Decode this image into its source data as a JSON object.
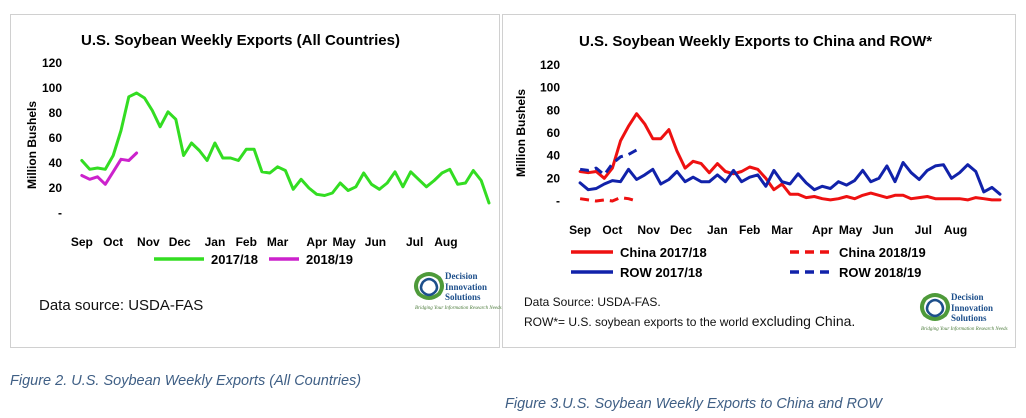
{
  "figures": [
    {
      "caption": "Figure 2. U.S. Soybean Weekly Exports (All Countries)",
      "source_text": "Data source: USDA-FAS",
      "logo": {
        "line1": "Decision",
        "line2": "Innovation",
        "line3": "Solutions",
        "tagline": "Bridging Your Information Research Needs",
        "icon": "knot-logo-icon",
        "colors": [
          "#4e9a3a",
          "#1d4f8b"
        ]
      }
    },
    {
      "caption": "Figure 3.U.S. Soybean Weekly Exports to China and ROW",
      "source_text": "Data Source: USDA-FAS.",
      "source_note_prefix": "ROW*= U.S. soybean exports to the world",
      "source_note_suffix": "excluding China.",
      "logo": {
        "line1": "Decision",
        "line2": "Innovation",
        "line3": "Solutions",
        "tagline": "Bridging Your Information Research Needs",
        "icon": "knot-logo-icon",
        "colors": [
          "#4e9a3a",
          "#1d4f8b"
        ]
      }
    }
  ],
  "chart_data": [
    {
      "type": "line",
      "title": "U.S. Soybean Weekly Exports (All Countries)",
      "ylabel": "Million Bushels",
      "xlabel": "",
      "ylim": [
        0,
        120
      ],
      "y_ticks": [
        "-",
        "20",
        "40",
        "60",
        "80",
        "100",
        "120"
      ],
      "x_ticks": [
        {
          "label": "Sep",
          "week": 1
        },
        {
          "label": "Oct",
          "week": 5
        },
        {
          "label": "Nov",
          "week": 9.5
        },
        {
          "label": "Dec",
          "week": 13.5
        },
        {
          "label": "Jan",
          "week": 18
        },
        {
          "label": "Feb",
          "week": 22
        },
        {
          "label": "Mar",
          "week": 26
        },
        {
          "label": "Apr",
          "week": 31
        },
        {
          "label": "May",
          "week": 34.5
        },
        {
          "label": "Jun",
          "week": 38.5
        },
        {
          "label": "Jul",
          "week": 43.5
        },
        {
          "label": "Aug",
          "week": 47.5
        }
      ],
      "x_range": [
        0,
        53
      ],
      "grid": false,
      "legend_position": "bottom",
      "series": [
        {
          "name": "2017/18",
          "color": "#33dd22",
          "dash": false,
          "values": [
            42,
            35,
            36,
            35,
            46,
            66,
            93,
            96,
            92,
            82,
            69,
            81,
            75,
            46,
            56,
            50,
            42,
            56,
            44,
            44,
            42,
            51,
            51,
            33,
            32,
            37,
            34,
            19,
            27,
            20,
            15,
            14,
            16,
            24,
            18,
            21,
            32,
            23,
            19,
            24,
            33,
            21,
            33,
            27,
            21,
            26,
            32,
            35,
            23,
            24,
            34,
            26,
            8
          ]
        },
        {
          "name": "2018/19",
          "color": "#cc22cc",
          "dash": false,
          "values": [
            30,
            27,
            29,
            23,
            33,
            43,
            42,
            48
          ]
        }
      ]
    },
    {
      "type": "line",
      "title": "U.S. Soybean Weekly Exports to China and ROW*",
      "ylabel": "Million Bushels",
      "xlabel": "",
      "ylim": [
        0,
        120
      ],
      "y_ticks": [
        "-",
        "20",
        "40",
        "60",
        "80",
        "100",
        "120"
      ],
      "x_ticks": [
        {
          "label": "Sep",
          "week": 1
        },
        {
          "label": "Oct",
          "week": 5
        },
        {
          "label": "Nov",
          "week": 9.5
        },
        {
          "label": "Dec",
          "week": 13.5
        },
        {
          "label": "Jan",
          "week": 18
        },
        {
          "label": "Feb",
          "week": 22
        },
        {
          "label": "Mar",
          "week": 26
        },
        {
          "label": "Apr",
          "week": 31
        },
        {
          "label": "May",
          "week": 34.5
        },
        {
          "label": "Jun",
          "week": 38.5
        },
        {
          "label": "Jul",
          "week": 43.5
        },
        {
          "label": "Aug",
          "week": 47.5
        }
      ],
      "x_range": [
        0,
        53
      ],
      "grid": false,
      "legend_position": "bottom",
      "series": [
        {
          "name": "China 2017/18",
          "color": "#ee1111",
          "dash": false,
          "values": [
            26,
            25,
            26,
            20,
            29,
            53,
            66,
            77,
            68,
            55,
            55,
            63,
            44,
            29,
            35,
            33,
            25,
            33,
            26,
            24,
            26,
            30,
            28,
            20,
            10,
            15,
            6,
            6,
            3,
            4,
            2,
            1,
            2,
            4,
            2,
            5,
            7,
            5,
            3,
            5,
            5,
            2,
            3,
            4,
            2,
            2,
            2,
            2,
            1,
            3,
            2,
            1,
            1
          ]
        },
        {
          "name": "China 2018/19",
          "color": "#ee1111",
          "dash": true,
          "values": [
            2,
            1,
            0,
            1,
            0,
            3,
            2,
            0
          ]
        },
        {
          "name": "ROW 2017/18",
          "color": "#1122aa",
          "dash": false,
          "values": [
            16,
            10,
            11,
            15,
            18,
            17,
            28,
            19,
            23,
            28,
            15,
            19,
            26,
            17,
            21,
            17,
            17,
            23,
            17,
            27,
            17,
            21,
            23,
            13,
            27,
            17,
            15,
            24,
            16,
            10,
            13,
            11,
            17,
            14,
            18,
            27,
            17,
            20,
            31,
            17,
            34,
            25,
            19,
            27,
            31,
            32,
            20,
            25,
            32,
            26,
            8,
            12,
            6
          ]
        },
        {
          "name": "ROW 2018/19",
          "color": "#1122aa",
          "dash": true,
          "values": [
            28,
            27,
            29,
            23,
            33,
            39,
            41,
            45
          ]
        }
      ]
    }
  ]
}
